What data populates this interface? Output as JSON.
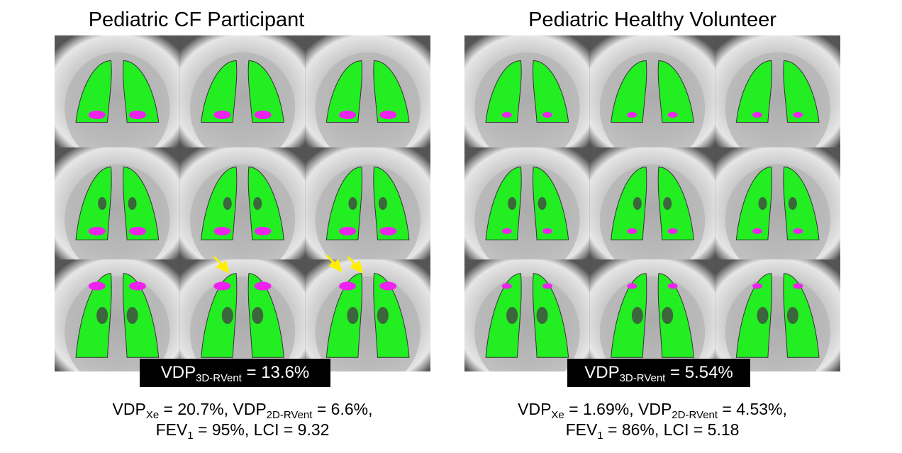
{
  "panels": [
    {
      "title": "Pediatric CF Participant",
      "vdp3d": {
        "prefix": "VDP",
        "sub": "3D-RVent",
        "value": " = 13.6%"
      },
      "stats_line1": [
        {
          "t": "VDP"
        },
        {
          "sub": "Xe"
        },
        {
          "t": " = 20.7%, VDP"
        },
        {
          "sub": "2D-RVent"
        },
        {
          "t": " = 6.6%,"
        }
      ],
      "stats_line2": [
        {
          "t": "FEV"
        },
        {
          "sub": "1"
        },
        {
          "t": " = 95%, LCI = 9.32"
        }
      ]
    },
    {
      "title": "Pediatric Healthy Volunteer",
      "vdp3d": {
        "prefix": "VDP",
        "sub": "3D-RVent",
        "value": " = 5.54%"
      },
      "stats_line1": [
        {
          "t": "VDP"
        },
        {
          "sub": "Xe"
        },
        {
          "t": " = 1.69%, VDP"
        },
        {
          "sub": "2D-RVent"
        },
        {
          "t": " = 4.53%,"
        }
      ],
      "stats_line2": [
        {
          "t": "FEV"
        },
        {
          "sub": "1"
        },
        {
          "t": " = 86%, LCI = 5.18"
        }
      ]
    }
  ],
  "colors": {
    "ventilated": "#22ee22",
    "defect": "#ee22ee",
    "arrow": "#ffee00",
    "label_bg": "#000000",
    "label_text": "#ffffff"
  }
}
